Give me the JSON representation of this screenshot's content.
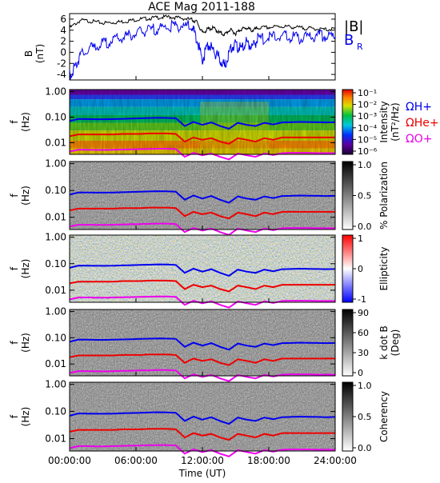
{
  "chart_data": {
    "type": "spectrogram-stack",
    "title": "ACE Mag 2011-188",
    "xlabel": "Time (UT)",
    "x_ticks": [
      "00:00:00",
      "06:00:00",
      "12:00:00",
      "18:00:00",
      "24:00:00"
    ],
    "x_range_hours": [
      0,
      24
    ],
    "colors": {
      "B_total": "#000000",
      "B_R": "#0000ee",
      "H_plus": "#0000ee",
      "He_plus": "#ee0000",
      "O_plus": "#ee00ee"
    },
    "top_panel": {
      "type": "line",
      "ylabel_line1": "B",
      "ylabel_line2": "(nT)",
      "ylim": [
        -5,
        7
      ],
      "y_ticks": [
        "6",
        "4",
        "2",
        "0",
        "-2",
        "-4"
      ],
      "y_tick_values": [
        6,
        4,
        2,
        0,
        -2,
        -4
      ],
      "legend": [
        "|B|",
        "B"
      ],
      "legend_sub": "R",
      "series": [
        {
          "name": "|B|",
          "x": [
            0,
            1,
            2,
            3,
            4,
            5,
            6,
            7,
            8,
            9,
            10,
            11,
            11.5,
            12,
            12.5,
            13,
            13.5,
            14,
            14.5,
            15,
            15.5,
            16,
            16.5,
            17,
            18,
            19,
            20,
            21,
            22,
            23,
            24
          ],
          "values": [
            4.4,
            5.8,
            5.6,
            5.3,
            5.4,
            5.6,
            5.9,
            6.1,
            6.3,
            6.4,
            6.2,
            5.9,
            5.5,
            3.5,
            4.2,
            4.4,
            3.6,
            3.2,
            4.1,
            3.4,
            4.2,
            4.4,
            3.9,
            4.4,
            4.5,
            4.7,
            4.6,
            4.4,
            4.3,
            4.1,
            4.2
          ]
        },
        {
          "name": "B",
          "x": [
            0,
            0.5,
            1,
            2,
            3,
            4,
            5,
            6,
            7,
            8,
            9,
            10,
            11,
            11.5,
            12,
            12.5,
            13,
            13.5,
            14,
            14.5,
            15,
            15.5,
            16,
            16.5,
            17,
            18,
            19,
            20,
            21,
            22,
            23,
            24
          ],
          "values": [
            -4.2,
            -2.5,
            -0.5,
            0.8,
            1.5,
            2.2,
            2.8,
            3.4,
            3.9,
            4.3,
            4.6,
            4.8,
            4.7,
            2.5,
            -1.5,
            1.5,
            0.3,
            -1.0,
            -2.6,
            0.5,
            1.5,
            0.5,
            1.9,
            1.0,
            2.4,
            2.6,
            3.0,
            2.8,
            2.5,
            2.9,
            3.0,
            2.8
          ]
        }
      ]
    },
    "spectrogram_panels": [
      {
        "kind": "color",
        "colorbar": "rainbow",
        "label_lines": [
          "Intensity",
          "(nT²/Hz)"
        ],
        "colorbar_ticks": [
          "10⁻¹",
          "10⁻²",
          "10⁻³",
          "10⁻⁴",
          "10⁻⁵",
          "10⁻⁶"
        ],
        "legend": [
          "ΩH+",
          "ΩHe+",
          "ΩO+"
        ]
      },
      {
        "kind": "gray",
        "colorbar": "gray",
        "label_lines": [
          "% Polarization"
        ],
        "colorbar_ticks": [
          "1.0",
          "0.5",
          "0.0"
        ]
      },
      {
        "kind": "rb",
        "colorbar": "red-white-blue",
        "label_lines": [
          "Ellipticity"
        ],
        "colorbar_ticks": [
          "1",
          "0",
          "-1"
        ]
      },
      {
        "kind": "gray",
        "colorbar": "gray",
        "label_lines": [
          "k dot B",
          "(Deg)"
        ],
        "colorbar_ticks": [
          "90",
          "60",
          "30",
          "0"
        ]
      },
      {
        "kind": "gray",
        "colorbar": "gray",
        "label_lines": [
          "Coherency"
        ],
        "colorbar_ticks": [
          "1.0",
          "0.5",
          "0.0"
        ]
      }
    ],
    "spectrogram_axis": {
      "ylabel_line1": "f",
      "ylabel_line2": "(Hz)",
      "y_ticks": [
        "1.00",
        "0.10",
        "0.01"
      ],
      "y_tick_values": [
        1.0,
        0.1,
        0.01
      ],
      "ylim": [
        0.0035,
        1.2
      ],
      "scale": "log"
    },
    "gyrofrequency_lines": [
      {
        "name": "ΩH+",
        "values_hz": [
          0.07,
          0.085,
          0.084,
          0.083,
          0.083,
          0.084,
          0.086,
          0.088,
          0.09,
          0.092,
          0.094,
          0.093,
          0.09,
          0.045,
          0.065,
          0.05,
          0.062,
          0.045,
          0.035,
          0.06,
          0.05,
          0.045,
          0.06,
          0.052,
          0.062,
          0.063,
          0.065,
          0.064,
          0.063,
          0.062,
          0.063
        ]
      },
      {
        "name": "ΩHe+",
        "values_hz": [
          0.018,
          0.021,
          0.021,
          0.021,
          0.021,
          0.021,
          0.022,
          0.022,
          0.022,
          0.023,
          0.023,
          0.023,
          0.022,
          0.011,
          0.016,
          0.013,
          0.015,
          0.011,
          0.009,
          0.015,
          0.013,
          0.011,
          0.015,
          0.013,
          0.016,
          0.016,
          0.016,
          0.016,
          0.016,
          0.016,
          0.016
        ]
      },
      {
        "name": "ΩO+",
        "values_hz": [
          0.0045,
          0.0053,
          0.0053,
          0.0052,
          0.0052,
          0.0053,
          0.0054,
          0.0055,
          0.0056,
          0.0057,
          0.0058,
          0.0058,
          0.0056,
          0.0028,
          0.004,
          0.0032,
          0.0038,
          0.0028,
          0.0022,
          0.0038,
          0.0032,
          0.0028,
          0.0038,
          0.0033,
          0.0039,
          0.004,
          0.004,
          0.004,
          0.0039,
          0.0039,
          0.0039
        ]
      }
    ]
  }
}
